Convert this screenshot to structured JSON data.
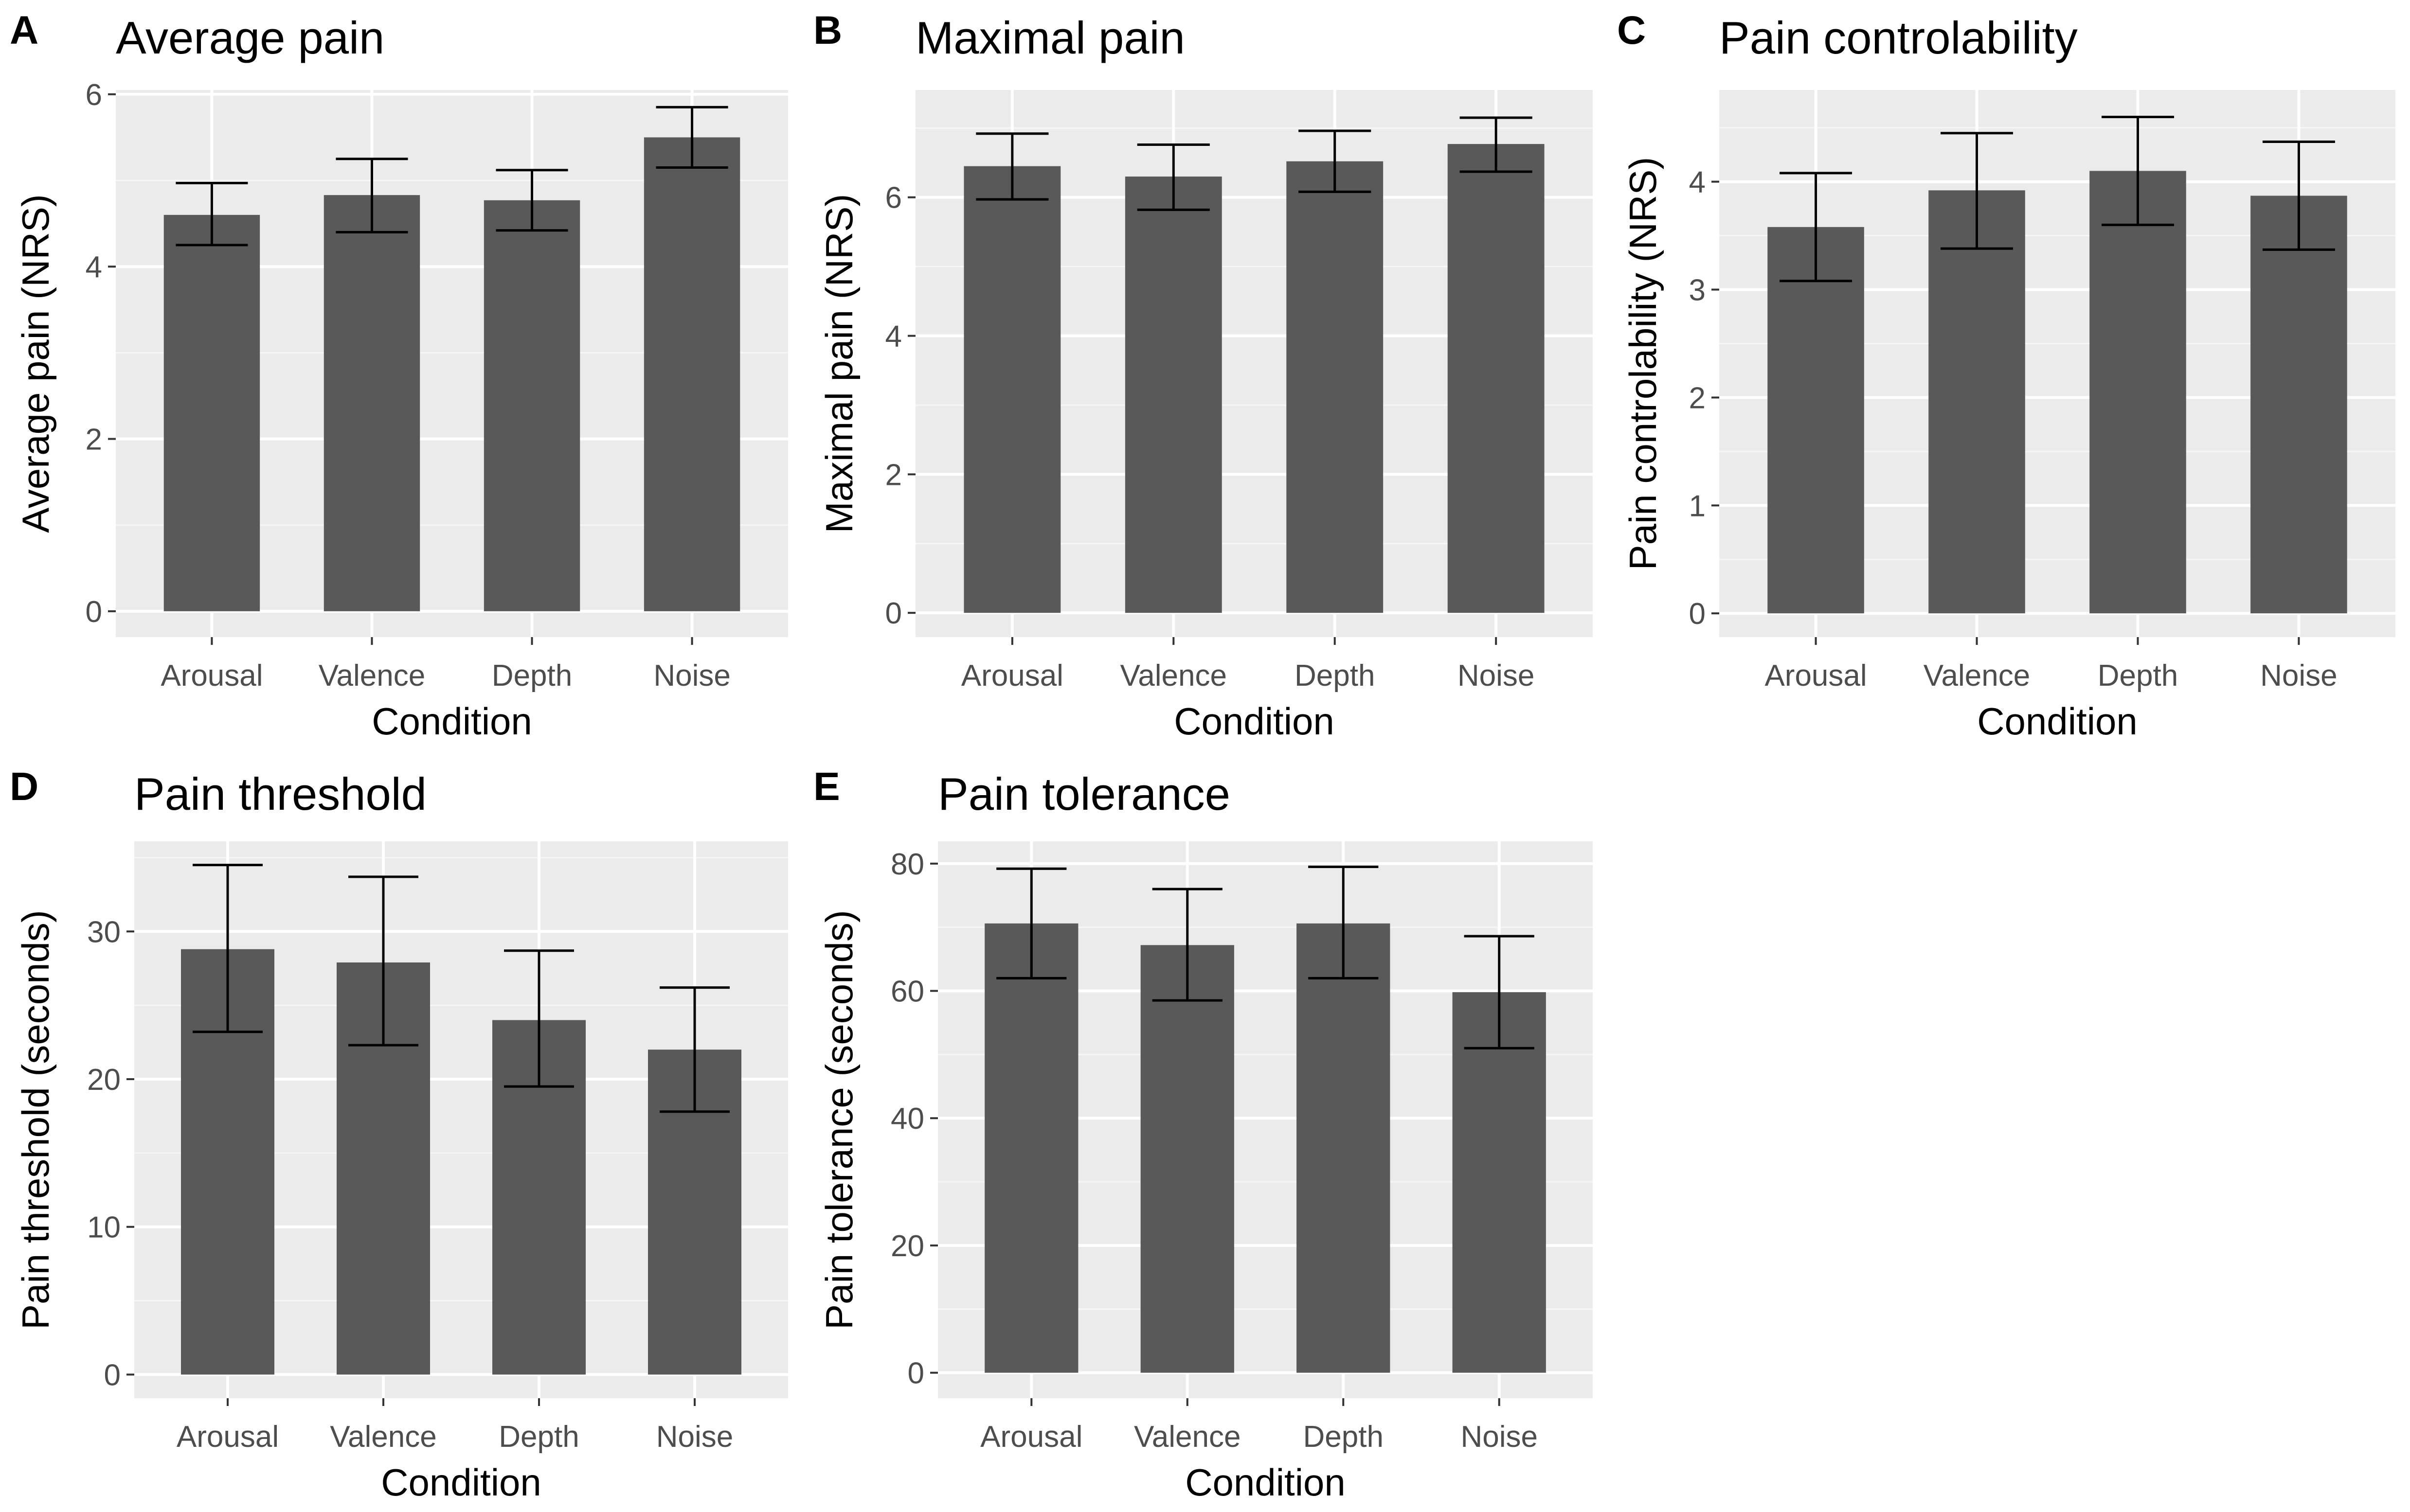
{
  "figure": {
    "background": "#ffffff",
    "panel_bg": "#ebebeb",
    "grid_major": "#ffffff",
    "bar_fill": "#595959",
    "error_color": "#000000"
  },
  "chart_data": [
    {
      "panel": "A",
      "type": "bar",
      "title": "Average pain",
      "xlabel": "Condition",
      "ylabel": "Average pain (NRS)",
      "categories": [
        "Arousal",
        "Valence",
        "Depth",
        "Noise"
      ],
      "values": [
        4.6,
        4.83,
        4.77,
        5.5
      ],
      "err_low": [
        4.25,
        4.4,
        4.42,
        5.15
      ],
      "err_high": [
        4.97,
        5.25,
        5.12,
        5.85
      ],
      "ylim": [
        -0.3,
        6.05
      ],
      "yticks": [
        0,
        2,
        4,
        6
      ],
      "yminor": [
        1,
        3,
        5
      ],
      "tick_labels": [
        "0",
        "2",
        "4",
        "6"
      ]
    },
    {
      "panel": "B",
      "type": "bar",
      "title": "Maximal pain",
      "xlabel": "Condition",
      "ylabel": "Maximal pain (NRS)",
      "categories": [
        "Arousal",
        "Valence",
        "Depth",
        "Noise"
      ],
      "values": [
        6.45,
        6.3,
        6.52,
        6.77
      ],
      "err_low": [
        5.97,
        5.82,
        6.08,
        6.37
      ],
      "err_high": [
        6.92,
        6.76,
        6.96,
        7.15
      ],
      "ylim": [
        -0.35,
        7.55
      ],
      "yticks": [
        0,
        2,
        4,
        6
      ],
      "yminor": [
        1,
        3,
        5,
        7
      ],
      "tick_labels": [
        "0",
        "2",
        "4",
        "6"
      ]
    },
    {
      "panel": "C",
      "type": "bar",
      "title": "Pain controlability",
      "xlabel": "Condition",
      "ylabel": "Pain controlability (NRS)",
      "categories": [
        "Arousal",
        "Valence",
        "Depth",
        "Noise"
      ],
      "values": [
        3.58,
        3.92,
        4.1,
        3.87
      ],
      "err_low": [
        3.08,
        3.38,
        3.6,
        3.37
      ],
      "err_high": [
        4.08,
        4.45,
        4.6,
        4.37
      ],
      "ylim": [
        -0.22,
        4.85
      ],
      "yticks": [
        0,
        1,
        2,
        3,
        4
      ],
      "yminor": [
        0.5,
        1.5,
        2.5,
        3.5,
        4.5
      ],
      "tick_labels": [
        "0",
        "1",
        "2",
        "3",
        "4"
      ]
    },
    {
      "panel": "D",
      "type": "bar",
      "title": "Pain threshold",
      "xlabel": "Condition",
      "ylabel": "Pain threshold (seconds)",
      "categories": [
        "Arousal",
        "Valence",
        "Depth",
        "Noise"
      ],
      "values": [
        28.8,
        27.9,
        24.0,
        22.0
      ],
      "err_low": [
        23.2,
        22.3,
        19.5,
        17.8
      ],
      "err_high": [
        34.5,
        33.7,
        28.7,
        26.2
      ],
      "ylim": [
        -1.6,
        36.1
      ],
      "yticks": [
        0,
        10,
        20,
        30
      ],
      "yminor": [
        5,
        15,
        25,
        35
      ],
      "tick_labels": [
        "0",
        "10",
        "20",
        "30"
      ]
    },
    {
      "panel": "E",
      "type": "bar",
      "title": "Pain tolerance",
      "xlabel": "Condition",
      "ylabel": "Pain tolerance (seconds)",
      "categories": [
        "Arousal",
        "Valence",
        "Depth",
        "Noise"
      ],
      "values": [
        70.6,
        67.2,
        70.6,
        59.8
      ],
      "err_low": [
        62.0,
        58.5,
        62.0,
        51.0
      ],
      "err_high": [
        79.2,
        76.0,
        79.5,
        68.6
      ],
      "ylim": [
        -4,
        83.5
      ],
      "yticks": [
        0,
        20,
        40,
        60,
        80
      ],
      "yminor": [
        10,
        30,
        50,
        70
      ],
      "tick_labels": [
        "0",
        "20",
        "40",
        "60",
        "80"
      ]
    }
  ]
}
